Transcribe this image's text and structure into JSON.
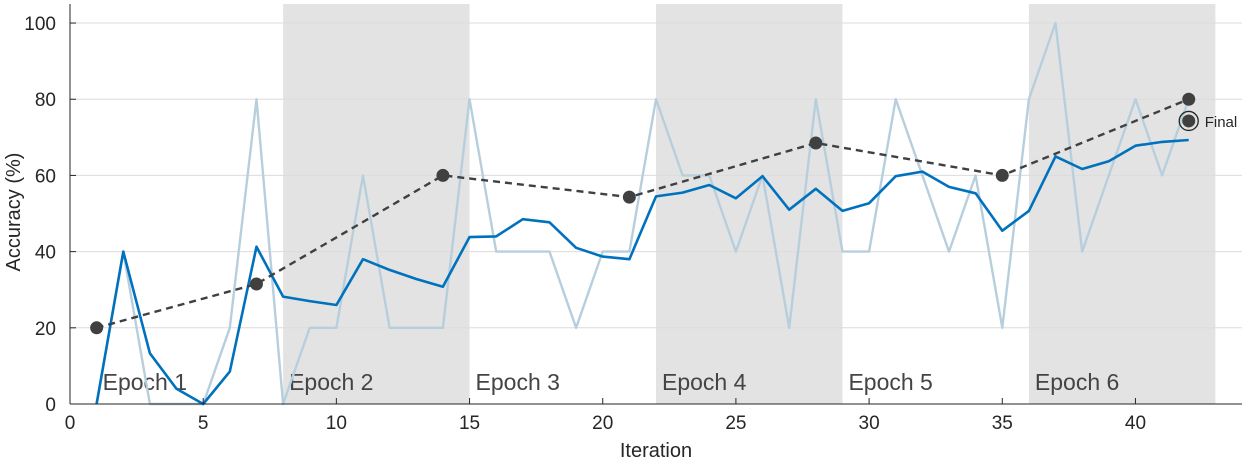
{
  "chart_data": {
    "type": "line",
    "xlabel": "Iteration",
    "ylabel": "Accuracy (%)",
    "xlim": [
      0,
      44
    ],
    "ylim": [
      0,
      105
    ],
    "x_ticks": [
      0,
      5,
      10,
      15,
      20,
      25,
      30,
      35,
      40
    ],
    "y_ticks": [
      0,
      20,
      40,
      60,
      80,
      100
    ],
    "grid": "horizontal",
    "epochs": [
      {
        "label": "Epoch 1",
        "start": 1,
        "end": 8,
        "shaded": false
      },
      {
        "label": "Epoch 2",
        "start": 8,
        "end": 15,
        "shaded": true
      },
      {
        "label": "Epoch 3",
        "start": 15,
        "end": 22,
        "shaded": false
      },
      {
        "label": "Epoch 4",
        "start": 22,
        "end": 29,
        "shaded": true
      },
      {
        "label": "Epoch 5",
        "start": 29,
        "end": 36,
        "shaded": false
      },
      {
        "label": "Epoch 6",
        "start": 36,
        "end": 43,
        "shaded": true
      }
    ],
    "series": [
      {
        "style": "raw",
        "color": "#b7cfdd",
        "x": [
          1,
          2,
          3,
          4,
          5,
          6,
          7,
          8,
          9,
          10,
          11,
          12,
          13,
          14,
          15,
          16,
          17,
          18,
          19,
          20,
          21,
          22,
          23,
          24,
          25,
          26,
          27,
          28,
          29,
          30,
          31,
          32,
          33,
          34,
          35,
          36,
          37,
          38,
          39,
          40,
          41,
          42
        ],
        "y": [
          0,
          40,
          0,
          0,
          0,
          20,
          80,
          0,
          20,
          20,
          60,
          20,
          20,
          20,
          80,
          40,
          40,
          40,
          20,
          40,
          40,
          80,
          60,
          60,
          40,
          60,
          20,
          80,
          40,
          40,
          80,
          60,
          40,
          60,
          20,
          80,
          100,
          40,
          60,
          80,
          60,
          80
        ]
      },
      {
        "style": "smoothed",
        "color": "#0072bd",
        "x": [
          1,
          2,
          3,
          4,
          5,
          6,
          7,
          8,
          9,
          10,
          11,
          12,
          13,
          14,
          15,
          16,
          17,
          18,
          19,
          20,
          21,
          22,
          23,
          24,
          25,
          26,
          27,
          28,
          29,
          30,
          31,
          32,
          33,
          34,
          35,
          36,
          37,
          38,
          39,
          40,
          41,
          42
        ],
        "y": [
          0,
          40,
          13.3,
          4,
          0,
          8.5,
          41.3,
          28.2,
          27,
          26,
          38,
          35.2,
          32.8,
          30.8,
          43.8,
          44,
          48.5,
          47.7,
          41,
          38.7,
          38,
          54.5,
          55.5,
          57.5,
          54,
          59.8,
          51,
          56.5,
          50.7,
          52.7,
          59.8,
          61,
          57,
          55.3,
          45.5,
          50.7,
          65,
          61.7,
          63.7,
          67.8,
          68.8,
          69.3
        ]
      },
      {
        "style": "validation",
        "color": "#404040",
        "x": [
          1,
          7,
          14,
          21,
          28,
          35,
          42
        ],
        "y": [
          20,
          31.5,
          60,
          54.3,
          68.5,
          60,
          80
        ]
      }
    ],
    "final_marker": {
      "label": "Final",
      "x": 42,
      "y": 74.3
    }
  }
}
